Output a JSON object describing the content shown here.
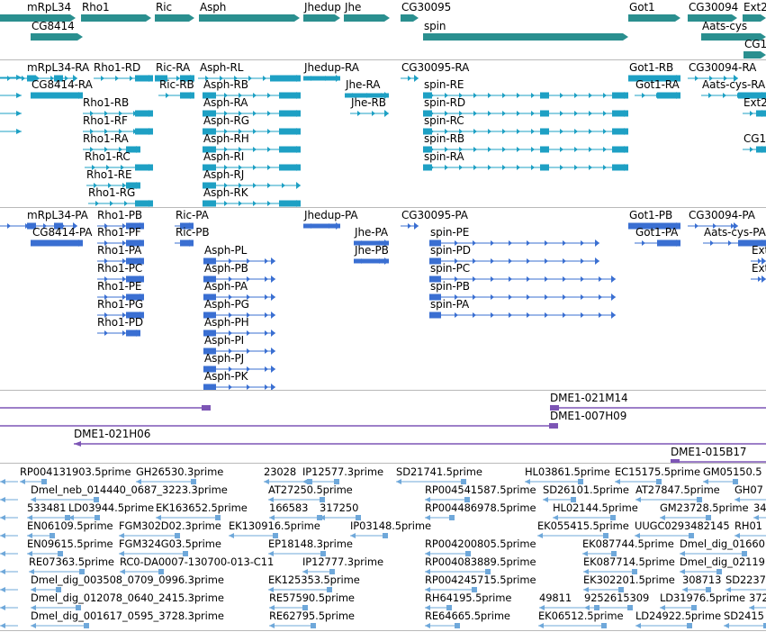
{
  "colors": {
    "gene": "#2a8f8f",
    "rna_flybase": "#1ea0c4",
    "rna_refseq": "#3a6fd2",
    "clone": "#7d55b5",
    "est": "#6fa8da",
    "separator": "#b9b9b9"
  },
  "tracks": {
    "genes": {
      "items": [
        {
          "label": "mRpL34",
          "strand": "+"
        },
        {
          "label": "CG8414",
          "strand": "+"
        },
        {
          "label": "Rho1",
          "strand": "+"
        },
        {
          "label": "Ric",
          "strand": "+"
        },
        {
          "label": "Asph",
          "strand": "+"
        },
        {
          "label": "Jhedup",
          "strand": "+"
        },
        {
          "label": "Jhe",
          "strand": "+"
        },
        {
          "label": "CG30095",
          "strand": "+"
        },
        {
          "label": "spin",
          "strand": "+"
        },
        {
          "label": "Got1",
          "strand": "+"
        },
        {
          "label": "CG30094",
          "strand": "+"
        },
        {
          "label": "Aats-cys",
          "strand": "+"
        },
        {
          "label": "Ext2",
          "strand": "+"
        },
        {
          "label": "CG1",
          "strand": "+"
        }
      ]
    },
    "flybase_rna": {
      "items": [
        {
          "label": "mRpL34-RA"
        },
        {
          "label": "CG8414-RA"
        },
        {
          "label": "Rho1-RD"
        },
        {
          "label": "Rho1-RB"
        },
        {
          "label": "Rho1-RF"
        },
        {
          "label": "Rho1-RA"
        },
        {
          "label": "Rho1-RC"
        },
        {
          "label": "Rho1-RE"
        },
        {
          "label": "Rho1-RG"
        },
        {
          "label": "Ric-RA"
        },
        {
          "label": "Ric-RB"
        },
        {
          "label": "Asph-RL"
        },
        {
          "label": "Asph-RB"
        },
        {
          "label": "Asph-RA"
        },
        {
          "label": "Asph-RG"
        },
        {
          "label": "Asph-RH"
        },
        {
          "label": "Asph-RI"
        },
        {
          "label": "Asph-RJ"
        },
        {
          "label": "Asph-RK"
        },
        {
          "label": "Jhedup-RA"
        },
        {
          "label": "Jhe-RA"
        },
        {
          "label": "Jhe-RB"
        },
        {
          "label": "CG30095-RA"
        },
        {
          "label": "spin-RE"
        },
        {
          "label": "spin-RD"
        },
        {
          "label": "spin-RC"
        },
        {
          "label": "spin-RB"
        },
        {
          "label": "spin-RA"
        },
        {
          "label": "Got1-RB"
        },
        {
          "label": "Got1-RA"
        },
        {
          "label": "CG30094-RA"
        },
        {
          "label": "Aats-cys-RA"
        },
        {
          "label": "Ext2"
        },
        {
          "label": "CG1"
        }
      ]
    },
    "refseq_rna": {
      "items": [
        {
          "label": "mRpL34-PA"
        },
        {
          "label": "CG8414-PA"
        },
        {
          "label": "Rho1-PB"
        },
        {
          "label": "Rho1-PF"
        },
        {
          "label": "Rho1-PA"
        },
        {
          "label": "Rho1-PC"
        },
        {
          "label": "Rho1-PE"
        },
        {
          "label": "Rho1-PG"
        },
        {
          "label": "Rho1-PD"
        },
        {
          "label": "Ric-PA"
        },
        {
          "label": "Ric-PB"
        },
        {
          "label": "Asph-PL"
        },
        {
          "label": "Asph-PB"
        },
        {
          "label": "Asph-PA"
        },
        {
          "label": "Asph-PG"
        },
        {
          "label": "Asph-PH"
        },
        {
          "label": "Asph-PI"
        },
        {
          "label": "Asph-PJ"
        },
        {
          "label": "Asph-PK"
        },
        {
          "label": "Jhedup-PA"
        },
        {
          "label": "Jhe-PA"
        },
        {
          "label": "Jhe-PB"
        },
        {
          "label": "CG30095-PA"
        },
        {
          "label": "spin-PE"
        },
        {
          "label": "spin-PD"
        },
        {
          "label": "spin-PC"
        },
        {
          "label": "spin-PB"
        },
        {
          "label": "spin-PA"
        },
        {
          "label": "Got1-PB"
        },
        {
          "label": "Got1-PA"
        },
        {
          "label": "CG30094-PA"
        },
        {
          "label": "Aats-cys-PA"
        },
        {
          "label": "Ext"
        },
        {
          "label": "Ext"
        }
      ]
    },
    "clones": {
      "items": [
        {
          "label": "DME1-021M14"
        },
        {
          "label": "DME1-007H09"
        },
        {
          "label": "DME1-021H06"
        },
        {
          "label": "DME1-015B17"
        }
      ]
    },
    "ests": {
      "items": [
        {
          "label": "RP004131903.5prime"
        },
        {
          "label": "GH26530.3prime"
        },
        {
          "label": "23028"
        },
        {
          "label": "IP12577.3prime"
        },
        {
          "label": "SD21741.5prime"
        },
        {
          "label": "HL03861.5prime"
        },
        {
          "label": "EC15175.5prime"
        },
        {
          "label": "GM05150.5"
        },
        {
          "label": "Dmel_neb_014440_0687_3223.3prime"
        },
        {
          "label": "AT27250.5prime"
        },
        {
          "label": "RP004541587.5prime"
        },
        {
          "label": "SD26101.5prime"
        },
        {
          "label": "AT27847.5prime"
        },
        {
          "label": "GH07"
        },
        {
          "label": "533481"
        },
        {
          "label": "LD03944.5prime"
        },
        {
          "label": "EK163652.5prime"
        },
        {
          "label": "166583"
        },
        {
          "label": "317250"
        },
        {
          "label": "RP004486978.5prime"
        },
        {
          "label": "HL02144.5prime"
        },
        {
          "label": "GM23728.5prime"
        },
        {
          "label": "34"
        },
        {
          "label": "EN06109.5prime"
        },
        {
          "label": "FGM302D02.3prime"
        },
        {
          "label": "EK130916.5prime"
        },
        {
          "label": "IP03148.5prime"
        },
        {
          "label": "EK055415.5prime"
        },
        {
          "label": "UUGC0293482145"
        },
        {
          "label": "RH01"
        },
        {
          "label": "EN09615.5prime"
        },
        {
          "label": "FGM324G03.5prime"
        },
        {
          "label": "EP18148.3prime"
        },
        {
          "label": "RP004200805.5prime"
        },
        {
          "label": "EK087744.5prime"
        },
        {
          "label": "Dmel_dig_01660"
        },
        {
          "label": "RE07363.5prime"
        },
        {
          "label": "RC0-DA0007-130700-013-C11"
        },
        {
          "label": "IP12777.3prime"
        },
        {
          "label": "RP004083889.5prime"
        },
        {
          "label": "EK087714.5prime"
        },
        {
          "label": "Dmel_dig_02119"
        },
        {
          "label": "Dmel_dig_003508_0709_0996.3prime"
        },
        {
          "label": "EK125353.5prime"
        },
        {
          "label": "RP004245715.5prime"
        },
        {
          "label": "EK302201.5prime"
        },
        {
          "label": "308713"
        },
        {
          "label": "SD2237"
        },
        {
          "label": "Dmel_dig_012078_0640_2415.3prime"
        },
        {
          "label": "RE57590.5prime"
        },
        {
          "label": "RH64195.5prime"
        },
        {
          "label": "49811"
        },
        {
          "label": "9252615309"
        },
        {
          "label": "LD31976.5prime"
        },
        {
          "label": "372"
        },
        {
          "label": "Dmel_dig_001617_0595_3728.3prime"
        },
        {
          "label": "RE62795.5prime"
        },
        {
          "label": "RE64665.5prime"
        },
        {
          "label": "EK06512.5prime"
        },
        {
          "label": "LD24922.5prime"
        },
        {
          "label": "SD2415"
        }
      ]
    }
  }
}
